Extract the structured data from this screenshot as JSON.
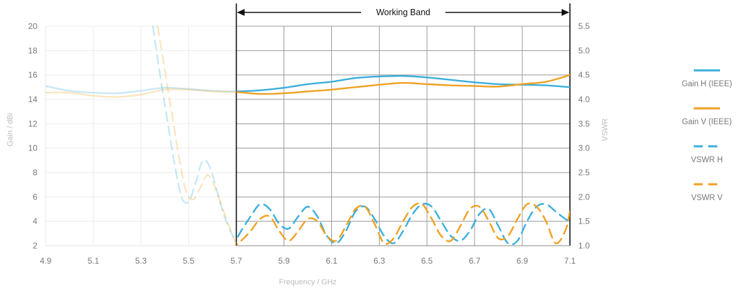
{
  "chart_data": {
    "type": "line",
    "xlabel": "Frequency / GHz",
    "ylabel": "Gain / dBi",
    "y2label": "VSWR",
    "xlim": [
      4.9,
      7.1
    ],
    "ylim": [
      2,
      20
    ],
    "y2lim": [
      1.0,
      5.5
    ],
    "xticks": [
      "4.9",
      "5.1",
      "5.3",
      "5.5",
      "5.7",
      "5.9",
      "6.1",
      "6.3",
      "6.5",
      "6.7",
      "6.9",
      "7.1"
    ],
    "yticks": [
      "2",
      "4",
      "6",
      "8",
      "10",
      "12",
      "14",
      "16",
      "18",
      "20"
    ],
    "y2ticks": [
      "1.0",
      "1.5",
      "2.0",
      "2.5",
      "3.0",
      "3.5",
      "4.0",
      "4.5",
      "5.0",
      "5.5"
    ],
    "grid": true,
    "legend_position": "right",
    "band": {
      "label": "Working Band",
      "from": 5.7,
      "to": 7.1
    },
    "series": [
      {
        "name": "Gain H (IEEE)",
        "axis": "left",
        "style": "solid",
        "color": "#3aaedc",
        "x": [
          4.9,
          5.0,
          5.1,
          5.2,
          5.3,
          5.4,
          5.5,
          5.6,
          5.7,
          5.8,
          5.9,
          6.0,
          6.1,
          6.2,
          6.3,
          6.4,
          6.5,
          6.6,
          6.7,
          6.8,
          6.9,
          7.0,
          7.1
        ],
        "y": [
          15.1,
          14.7,
          14.55,
          14.5,
          14.7,
          14.95,
          14.85,
          14.7,
          14.65,
          14.75,
          14.95,
          15.25,
          15.45,
          15.75,
          15.88,
          15.92,
          15.8,
          15.6,
          15.4,
          15.25,
          15.2,
          15.15,
          15.0
        ]
      },
      {
        "name": "Gain V (IEEE)",
        "axis": "left",
        "style": "solid",
        "color": "#f0a020",
        "x": [
          4.9,
          5.0,
          5.1,
          5.2,
          5.3,
          5.4,
          5.5,
          5.6,
          5.7,
          5.8,
          5.9,
          6.0,
          6.1,
          6.2,
          6.3,
          6.4,
          6.5,
          6.6,
          6.7,
          6.8,
          6.9,
          7.0,
          7.1
        ],
        "y": [
          14.55,
          14.55,
          14.3,
          14.2,
          14.4,
          14.8,
          14.8,
          14.65,
          14.6,
          14.45,
          14.5,
          14.65,
          14.8,
          15.0,
          15.2,
          15.35,
          15.25,
          15.15,
          15.1,
          15.05,
          15.25,
          15.45,
          16.0
        ]
      },
      {
        "name": "VSWR H",
        "axis": "right",
        "style": "dashed",
        "color": "#3aaedc",
        "x": [
          5.35,
          5.38,
          5.41,
          5.44,
          5.47,
          5.5,
          5.53,
          5.56,
          5.59,
          5.62,
          5.65,
          5.68,
          5.7,
          5.72,
          5.76,
          5.8,
          5.84,
          5.88,
          5.92,
          5.96,
          6.0,
          6.04,
          6.08,
          6.12,
          6.16,
          6.2,
          6.24,
          6.28,
          6.32,
          6.36,
          6.4,
          6.44,
          6.48,
          6.52,
          6.56,
          6.6,
          6.64,
          6.68,
          6.72,
          6.76,
          6.8,
          6.84,
          6.88,
          6.92,
          6.96,
          7.0,
          7.04,
          7.08,
          7.1
        ],
        "y": [
          5.5,
          4.5,
          3.6,
          2.7,
          2.0,
          1.9,
          2.3,
          2.75,
          2.6,
          2.1,
          1.6,
          1.25,
          1.15,
          1.3,
          1.6,
          1.85,
          1.75,
          1.45,
          1.35,
          1.6,
          1.8,
          1.6,
          1.2,
          1.05,
          1.3,
          1.7,
          1.8,
          1.55,
          1.2,
          1.05,
          1.3,
          1.65,
          1.85,
          1.8,
          1.5,
          1.2,
          1.1,
          1.3,
          1.65,
          1.75,
          1.4,
          1.05,
          1.1,
          1.5,
          1.8,
          1.85,
          1.7,
          1.55,
          1.5
        ]
      },
      {
        "name": "VSWR V",
        "axis": "right",
        "style": "dashed",
        "color": "#f0a020",
        "x": [
          5.37,
          5.4,
          5.43,
          5.46,
          5.49,
          5.52,
          5.55,
          5.58,
          5.61,
          5.64,
          5.67,
          5.7,
          5.72,
          5.76,
          5.8,
          5.84,
          5.88,
          5.92,
          5.96,
          6.0,
          6.04,
          6.08,
          6.12,
          6.16,
          6.2,
          6.24,
          6.28,
          6.32,
          6.36,
          6.4,
          6.44,
          6.48,
          6.52,
          6.56,
          6.6,
          6.64,
          6.68,
          6.72,
          6.76,
          6.8,
          6.84,
          6.88,
          6.92,
          6.96,
          7.0,
          7.04,
          7.08,
          7.1
        ],
        "y": [
          5.5,
          4.6,
          3.7,
          2.8,
          2.1,
          1.95,
          2.2,
          2.45,
          2.2,
          1.8,
          1.4,
          1.05,
          1.1,
          1.3,
          1.55,
          1.6,
          1.3,
          1.1,
          1.3,
          1.55,
          1.5,
          1.2,
          1.1,
          1.4,
          1.75,
          1.8,
          1.45,
          1.05,
          1.15,
          1.5,
          1.8,
          1.85,
          1.55,
          1.2,
          1.1,
          1.4,
          1.75,
          1.8,
          1.5,
          1.15,
          1.2,
          1.55,
          1.85,
          1.8,
          1.5,
          1.05,
          1.3,
          1.7
        ]
      }
    ]
  }
}
